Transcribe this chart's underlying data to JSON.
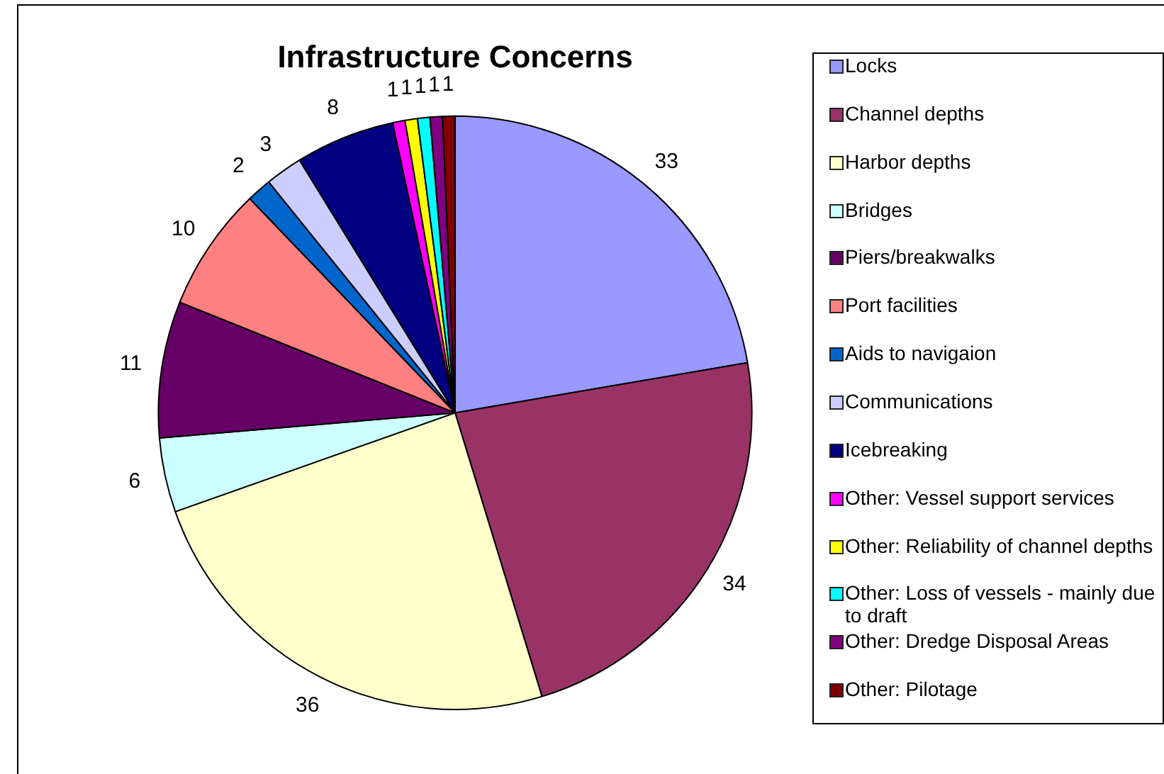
{
  "chart_data": {
    "type": "pie",
    "title": "Infrastructure Concerns",
    "categories": [
      "Locks",
      "Channel depths",
      "Harbor depths",
      "Bridges",
      "Piers/breakwalks",
      "Port facilities",
      "Aids to navigaion",
      "Communications",
      "Icebreaking",
      "Other: Vessel support services",
      "Other: Reliability of channel depths",
      "Other: Loss of vessels - mainly due to draft",
      "Other: Dredge Disposal Areas",
      "Other: Pilotage"
    ],
    "values": [
      33,
      34,
      36,
      6,
      11,
      10,
      2,
      3,
      8,
      1,
      1,
      1,
      1,
      1
    ],
    "colors": [
      "#9999ff",
      "#993366",
      "#ffffcc",
      "#ccffff",
      "#660066",
      "#ff8080",
      "#0066cc",
      "#ccccff",
      "#000080",
      "#ff00ff",
      "#ffff00",
      "#00ffff",
      "#800080",
      "#800000"
    ],
    "data_labels": true,
    "legend": "right"
  }
}
